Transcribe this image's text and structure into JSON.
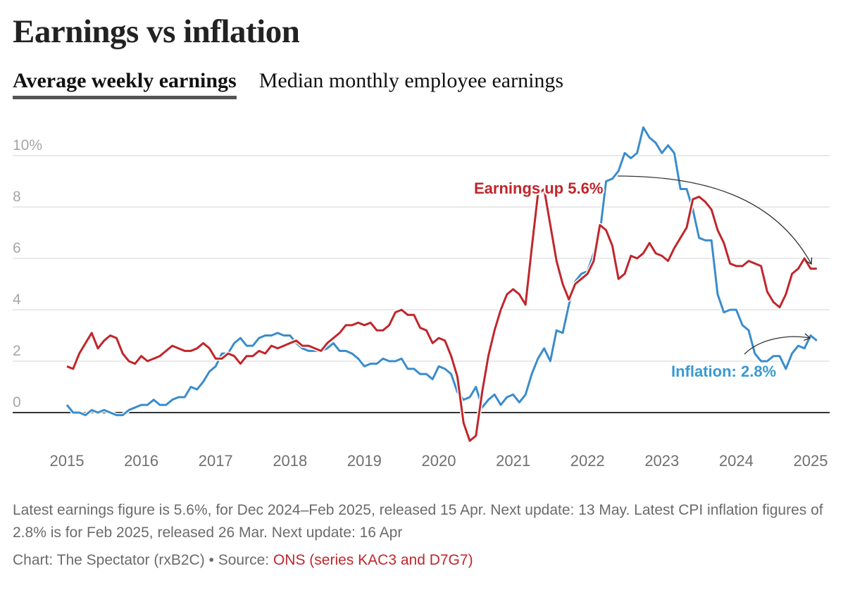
{
  "title": "Earnings vs inflation",
  "tabs": [
    {
      "label": "Average weekly earnings",
      "active": true
    },
    {
      "label": "Median monthly employee earnings",
      "active": false
    }
  ],
  "colors": {
    "earnings": "#c0262b",
    "inflation": "#3a8ccc",
    "grid": "#e2e2e2",
    "axis": "#333333",
    "tick": "#a6a6a6",
    "year": "#707070"
  },
  "chart_data": {
    "type": "line",
    "title": "Earnings vs inflation",
    "xlabel": "",
    "ylabel": "",
    "x_start": "Jan 2015",
    "x_end": "Feb 2025",
    "frequency": "monthly",
    "ylim": [
      -1.5,
      11.5
    ],
    "y_ticks": [
      0,
      2,
      4,
      6,
      8,
      10
    ],
    "y_tick_labels": [
      "0",
      "2",
      "4",
      "6",
      "8",
      "10%"
    ],
    "x_ticks": [
      "2015",
      "2016",
      "2017",
      "2018",
      "2019",
      "2020",
      "2021",
      "2022",
      "2023",
      "2024",
      "2025"
    ],
    "grid": true,
    "series": [
      {
        "name": "Earnings",
        "color": "#c0262b",
        "values": [
          1.8,
          1.7,
          2.3,
          2.7,
          3.1,
          2.5,
          2.8,
          3.0,
          2.9,
          2.3,
          2.0,
          1.9,
          2.2,
          2.0,
          2.1,
          2.2,
          2.4,
          2.6,
          2.5,
          2.4,
          2.4,
          2.5,
          2.7,
          2.5,
          2.1,
          2.1,
          2.3,
          2.2,
          1.9,
          2.2,
          2.2,
          2.4,
          2.3,
          2.6,
          2.5,
          2.6,
          2.7,
          2.8,
          2.6,
          2.6,
          2.5,
          2.4,
          2.7,
          2.9,
          3.1,
          3.4,
          3.4,
          3.5,
          3.4,
          3.5,
          3.2,
          3.2,
          3.4,
          3.9,
          4.0,
          3.8,
          3.8,
          3.3,
          3.2,
          2.7,
          2.9,
          2.8,
          2.2,
          1.4,
          -0.4,
          -1.1,
          -0.9,
          0.8,
          2.2,
          3.2,
          4.0,
          4.6,
          4.8,
          4.6,
          4.2,
          6.4,
          8.5,
          8.7,
          7.3,
          5.9,
          5.0,
          4.4,
          5.0,
          5.2,
          5.4,
          5.9,
          7.3,
          7.1,
          6.5,
          5.2,
          5.4,
          6.1,
          6.0,
          6.2,
          6.6,
          6.2,
          6.1,
          5.9,
          6.4,
          6.8,
          7.2,
          8.3,
          8.4,
          8.2,
          7.9,
          7.1,
          6.6,
          5.8,
          5.7,
          5.7,
          5.9,
          5.8,
          5.7,
          4.7,
          4.3,
          4.1,
          4.6,
          5.4,
          5.6,
          6.0,
          5.6,
          5.6
        ]
      },
      {
        "name": "Inflation",
        "color": "#3a8ccc",
        "values": [
          0.3,
          0.0,
          0.0,
          -0.1,
          0.1,
          0.0,
          0.1,
          0.0,
          -0.1,
          -0.1,
          0.1,
          0.2,
          0.3,
          0.3,
          0.5,
          0.3,
          0.3,
          0.5,
          0.6,
          0.6,
          1.0,
          0.9,
          1.2,
          1.6,
          1.8,
          2.3,
          2.3,
          2.7,
          2.9,
          2.6,
          2.6,
          2.9,
          3.0,
          3.0,
          3.1,
          3.0,
          3.0,
          2.7,
          2.5,
          2.4,
          2.4,
          2.4,
          2.5,
          2.7,
          2.4,
          2.4,
          2.3,
          2.1,
          1.8,
          1.9,
          1.9,
          2.1,
          2.0,
          2.0,
          2.1,
          1.7,
          1.7,
          1.5,
          1.5,
          1.3,
          1.8,
          1.7,
          1.5,
          0.8,
          0.5,
          0.6,
          1.0,
          0.2,
          0.5,
          0.7,
          0.3,
          0.6,
          0.7,
          0.4,
          0.7,
          1.5,
          2.1,
          2.5,
          2.0,
          3.2,
          3.1,
          4.2,
          5.1,
          5.4,
          5.5,
          6.2,
          7.0,
          9.0,
          9.1,
          9.4,
          10.1,
          9.9,
          10.1,
          11.1,
          10.7,
          10.5,
          10.1,
          10.4,
          10.1,
          8.7,
          8.7,
          7.9,
          6.8,
          6.7,
          6.7,
          4.6,
          3.9,
          4.0,
          4.0,
          3.4,
          3.2,
          2.3,
          2.0,
          2.0,
          2.2,
          2.2,
          1.7,
          2.3,
          2.6,
          2.5,
          3.0,
          2.8
        ]
      }
    ],
    "annotations": [
      {
        "text": "Earnings up 5.6%",
        "series": "Earnings"
      },
      {
        "text": "Inflation: 2.8%",
        "series": "Inflation"
      }
    ]
  },
  "footnote": "Latest earnings figure is 5.6%, for Dec 2024–Feb 2025, released 15 Apr. Next update: 13 May. Latest CPI inflation figures of 2.8% is for Feb 2025, released 26 Mar. Next update: 16 Apr",
  "credit": {
    "prefix": "Chart: The Spectator (rxB2C) • Source: ",
    "source": "ONS (series KAC3 and D7G7)"
  }
}
